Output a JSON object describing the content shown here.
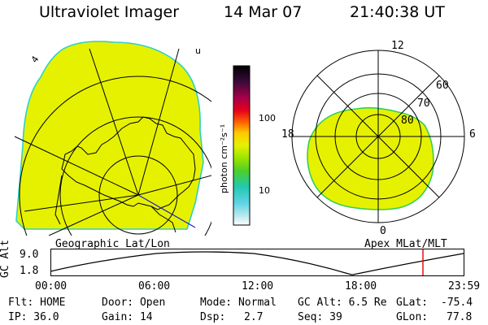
{
  "header": {
    "title": "Ultraviolet Imager",
    "date": "14 Mar 07",
    "time": "21:40:38 UT"
  },
  "colorbar": {
    "unit_label": "photon cm⁻²s⁻¹",
    "ticks": [
      "100",
      "10"
    ],
    "scale": "log"
  },
  "geo_panel": {
    "caption": "Geographic Lat/Lon",
    "fill_color": "#e6f100"
  },
  "polar_panel": {
    "caption": "Apex MLat/MLT",
    "mlt_labels": {
      "top": "12",
      "left": "18",
      "right": "6",
      "bottom": "0"
    },
    "lat_labels": [
      "60",
      "70",
      "80"
    ],
    "fill_color": "#e6f100"
  },
  "altitude_plot": {
    "axis_label": "GC Alt",
    "y_ticks": [
      "9.0",
      "1.8"
    ],
    "x_ticks": [
      "00:00",
      "06:00",
      "12:00",
      "18:00",
      "23:59"
    ],
    "marker_color": "#e00000"
  },
  "status": {
    "row1": {
      "flt": "Flt: HOME",
      "door": "Door: Open",
      "mode": "Mode: Normal",
      "gc_alt": "GC Alt: 6.5 Re",
      "glat_label": "GLat:",
      "glat_value": "-75.4"
    },
    "row2": {
      "ip": "IP: 36.0",
      "gain": "Gain: 14",
      "dsp_label": "Dsp:",
      "dsp_value": "2.7",
      "seq": "Seq: 39",
      "glon_label": "GLon:",
      "glon_value": "77.8"
    }
  }
}
